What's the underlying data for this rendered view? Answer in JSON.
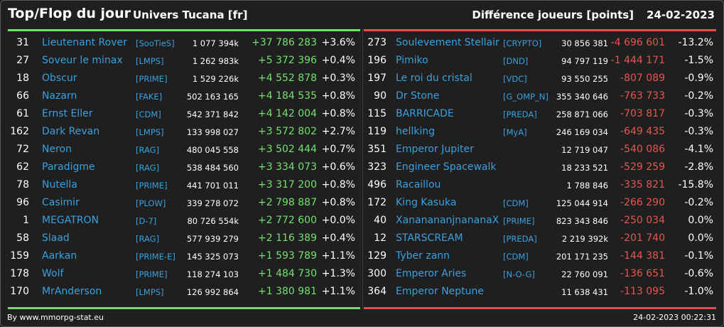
{
  "header": {
    "title": "Top/Flop du jour",
    "universe": "Univers Tucana [fr]",
    "metric": "Différence joueurs [points]",
    "date": "24-02-2023"
  },
  "colors": {
    "gain": "#74e070",
    "loss": "#e8554d",
    "link": "#3aa0e0",
    "background": "#1f1f1f"
  },
  "top": [
    {
      "rank": "31",
      "name": "Lieutenant Rover",
      "alliance": "[SooTieS]",
      "points": "1 077 394k",
      "diff": "+37 786 283",
      "pct": "+3.6%"
    },
    {
      "rank": "27",
      "name": "Soveur le minax",
      "alliance": "[LMPS]",
      "points": "1 262 983k",
      "diff": "+5 372 396",
      "pct": "+0.4%"
    },
    {
      "rank": "18",
      "name": "Obscur",
      "alliance": "[PRIME]",
      "points": "1 529 226k",
      "diff": "+4 552 878",
      "pct": "+0.3%"
    },
    {
      "rank": "66",
      "name": "Nazarn",
      "alliance": "[FAKE]",
      "points": "502 163 165",
      "diff": "+4 184 535",
      "pct": "+0.8%"
    },
    {
      "rank": "61",
      "name": "Ernst Eller",
      "alliance": "[CDM]",
      "points": "542 371 842",
      "diff": "+4 142 004",
      "pct": "+0.8%"
    },
    {
      "rank": "162",
      "name": "Dark Revan",
      "alliance": "[LMPS]",
      "points": "133 998 027",
      "diff": "+3 572 802",
      "pct": "+2.7%"
    },
    {
      "rank": "72",
      "name": "Neron",
      "alliance": "[RAG]",
      "points": "480 045 558",
      "diff": "+3 502 444",
      "pct": "+0.7%"
    },
    {
      "rank": "62",
      "name": "Paradigme",
      "alliance": "[RAG]",
      "points": "538 484 560",
      "diff": "+3 334 073",
      "pct": "+0.6%"
    },
    {
      "rank": "78",
      "name": "Nutella",
      "alliance": "[PRIME]",
      "points": "441 701 011",
      "diff": "+3 317 200",
      "pct": "+0.8%"
    },
    {
      "rank": "96",
      "name": "Casimir",
      "alliance": "[PLOW]",
      "points": "339 278 072",
      "diff": "+2 798 887",
      "pct": "+0.8%"
    },
    {
      "rank": "1",
      "name": "MEGATRON",
      "alliance": "[D-7]",
      "points": "80 726 554k",
      "diff": "+2 772 600",
      "pct": "+0.0%"
    },
    {
      "rank": "58",
      "name": "Slaad",
      "alliance": "[RAG]",
      "points": "577 939 279",
      "diff": "+2 116 389",
      "pct": "+0.4%"
    },
    {
      "rank": "159",
      "name": "Aarkan",
      "alliance": "[PRIME-E]",
      "points": "145 325 073",
      "diff": "+1 593 789",
      "pct": "+1.1%"
    },
    {
      "rank": "178",
      "name": "Wolf",
      "alliance": "[PRIME]",
      "points": "118 274 103",
      "diff": "+1 484 730",
      "pct": "+1.3%"
    },
    {
      "rank": "170",
      "name": "MrAnderson",
      "alliance": "[LMPS]",
      "points": "126 992 864",
      "diff": "+1 380 981",
      "pct": "+1.1%"
    }
  ],
  "flop": [
    {
      "rank": "273",
      "name": "Soulevement Stellair",
      "alliance": "[CRYPTO]",
      "points": "30 856 381",
      "diff": "-4 696 601",
      "pct": "-13.2%"
    },
    {
      "rank": "196",
      "name": "Pimiko",
      "alliance": "[DND]",
      "points": "94 797 119",
      "diff": "-1 444 171",
      "pct": "-1.5%"
    },
    {
      "rank": "197",
      "name": "Le roi du cristal",
      "alliance": "[VDC]",
      "points": "93 550 255",
      "diff": "-807 089",
      "pct": "-0.9%"
    },
    {
      "rank": "90",
      "name": "Dr Stone",
      "alliance": "[G_OMP_N]",
      "points": "355 340 646",
      "diff": "-763 733",
      "pct": "-0.2%"
    },
    {
      "rank": "115",
      "name": "BARRICADE",
      "alliance": "[PREDA]",
      "points": "258 871 066",
      "diff": "-703 817",
      "pct": "-0.3%"
    },
    {
      "rank": "119",
      "name": "hellking",
      "alliance": "[MyA]",
      "points": "246 169 034",
      "diff": "-649 435",
      "pct": "-0.3%"
    },
    {
      "rank": "351",
      "name": "Emperor Jupiter",
      "alliance": "",
      "points": "12 719 047",
      "diff": "-540 086",
      "pct": "-4.1%"
    },
    {
      "rank": "323",
      "name": "Engineer Spacewalk",
      "alliance": "",
      "points": "18 233 521",
      "diff": "-529 259",
      "pct": "-2.8%"
    },
    {
      "rank": "496",
      "name": "Racaillou",
      "alliance": "",
      "points": "1 788 846",
      "diff": "-335 821",
      "pct": "-15.8%"
    },
    {
      "rank": "172",
      "name": "King Kasuka",
      "alliance": "[CDM]",
      "points": "125 044 914",
      "diff": "-266 290",
      "pct": "-0.2%"
    },
    {
      "rank": "40",
      "name": "XananananjnananaX",
      "alliance": "[PRIME]",
      "points": "823 343 846",
      "diff": "-250 034",
      "pct": "0.0%"
    },
    {
      "rank": "12",
      "name": "STARSCREAM",
      "alliance": "[PREDA]",
      "points": "2 219 392k",
      "diff": "-201 740",
      "pct": "0.0%"
    },
    {
      "rank": "129",
      "name": "Tyber zann",
      "alliance": "[CDM]",
      "points": "201 171 235",
      "diff": "-144 381",
      "pct": "-0.1%"
    },
    {
      "rank": "300",
      "name": "Emperor Aries",
      "alliance": "[N-O-G]",
      "points": "22 760 091",
      "diff": "-136 651",
      "pct": "-0.6%"
    },
    {
      "rank": "364",
      "name": "Emperor Neptune",
      "alliance": "",
      "points": "11 638 431",
      "diff": "-113 095",
      "pct": "-1.0%"
    }
  ],
  "footer": {
    "credit": "By www.mmorpg-stat.eu",
    "timestamp": "24-02-2023 00:22:31"
  }
}
